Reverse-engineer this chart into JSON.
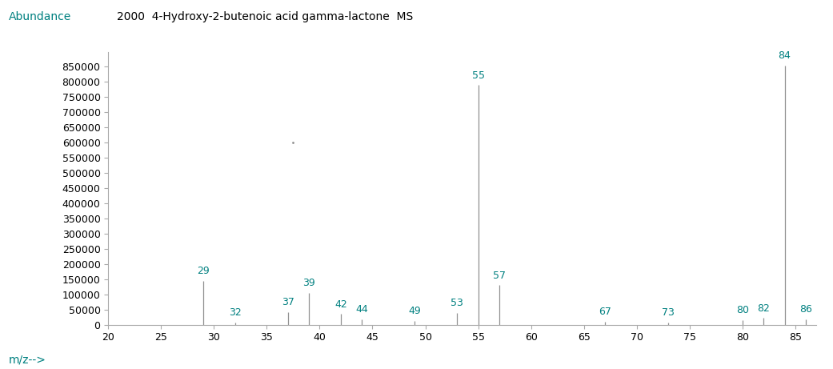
{
  "title": "2000  4-Hydroxy-2-butenoic acid gamma-lactone  MS",
  "ylabel": "Abundance",
  "xlabel": "m/z-->",
  "xlim": [
    20,
    87
  ],
  "ylim": [
    0,
    900000
  ],
  "yticks": [
    0,
    50000,
    100000,
    150000,
    200000,
    250000,
    300000,
    350000,
    400000,
    450000,
    500000,
    550000,
    600000,
    650000,
    700000,
    750000,
    800000,
    850000
  ],
  "xticks": [
    20,
    25,
    30,
    35,
    40,
    45,
    50,
    55,
    60,
    65,
    70,
    75,
    80,
    85
  ],
  "peaks": [
    {
      "mz": 29,
      "intensity": 145000,
      "label": "29"
    },
    {
      "mz": 32,
      "intensity": 8000,
      "label": "32"
    },
    {
      "mz": 37,
      "intensity": 42000,
      "label": "37"
    },
    {
      "mz": 39,
      "intensity": 105000,
      "label": "39"
    },
    {
      "mz": 42,
      "intensity": 35000,
      "label": "42"
    },
    {
      "mz": 44,
      "intensity": 18000,
      "label": "44"
    },
    {
      "mz": 49,
      "intensity": 12000,
      "label": "49"
    },
    {
      "mz": 53,
      "intensity": 40000,
      "label": "53"
    },
    {
      "mz": 55,
      "intensity": 790000,
      "label": "55"
    },
    {
      "mz": 57,
      "intensity": 130000,
      "label": "57"
    },
    {
      "mz": 67,
      "intensity": 10000,
      "label": "67"
    },
    {
      "mz": 73,
      "intensity": 8000,
      "label": "73"
    },
    {
      "mz": 80,
      "intensity": 15000,
      "label": "80"
    },
    {
      "mz": 82,
      "intensity": 22000,
      "label": "82"
    },
    {
      "mz": 84,
      "intensity": 855000,
      "label": "84"
    },
    {
      "mz": 86,
      "intensity": 18000,
      "label": "86"
    }
  ],
  "noise_dot": {
    "mz": 37.5,
    "intensity": 600000
  },
  "line_color": "#909090",
  "label_color": "#008080",
  "title_color": "#000000",
  "axis_label_color": "#008080",
  "background_color": "#ffffff",
  "title_fontsize": 10,
  "axis_label_fontsize": 10,
  "tick_label_fontsize": 9,
  "peak_label_fontsize": 9
}
